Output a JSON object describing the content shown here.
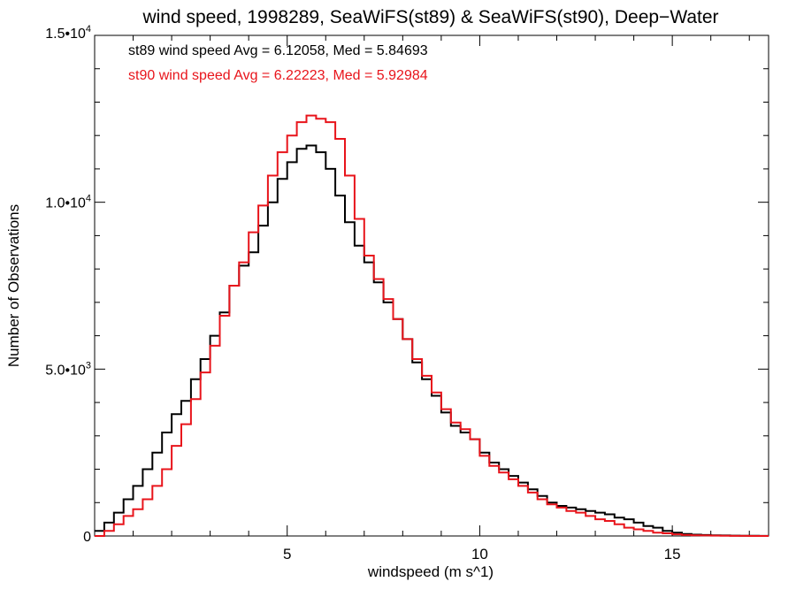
{
  "chart_data": {
    "type": "line",
    "title": "wind speed, 1998289, SeaWiFS(st89) & SeaWiFS(st90), Deep−Water",
    "xlabel": "windspeed (m s^1)",
    "ylabel": "Number of Observations",
    "xlim": [
      0,
      17.5
    ],
    "ylim": [
      0,
      15000
    ],
    "x_ticks": [
      {
        "value": 5,
        "label": "5"
      },
      {
        "value": 10,
        "label": "10"
      },
      {
        "value": 15,
        "label": "15"
      }
    ],
    "y_ticks": [
      {
        "value": 0,
        "mantissa": "0",
        "exp": ""
      },
      {
        "value": 5000,
        "mantissa": "5.0•10",
        "exp": "3"
      },
      {
        "value": 10000,
        "mantissa": "1.0•10",
        "exp": "4"
      },
      {
        "value": 15000,
        "mantissa": "1.5•10",
        "exp": "4"
      }
    ],
    "grid": false,
    "annotations": [
      {
        "text": "st89 wind speed Avg = 6.12058, Med = 5.84693",
        "color": "#000000"
      },
      {
        "text": "st90 wind speed Avg = 6.22223, Med = 5.92984",
        "color": "#e8141b"
      }
    ],
    "series": [
      {
        "color": "#000000",
        "x": [
          0,
          0.25,
          0.5,
          0.75,
          1,
          1.25,
          1.5,
          1.75,
          2,
          2.25,
          2.5,
          2.75,
          3,
          3.25,
          3.5,
          3.75,
          4,
          4.25,
          4.5,
          4.75,
          5,
          5.25,
          5.5,
          5.75,
          6,
          6.25,
          6.5,
          6.75,
          7,
          7.25,
          7.5,
          7.75,
          8,
          8.25,
          8.5,
          8.75,
          9,
          9.25,
          9.5,
          9.75,
          10,
          10.25,
          10.5,
          10.75,
          11,
          11.25,
          11.5,
          11.75,
          12,
          12.25,
          12.5,
          12.75,
          13,
          13.25,
          13.5,
          13.75,
          14,
          14.25,
          14.5,
          14.75,
          15,
          15.25,
          15.5,
          15.75,
          16,
          16.25,
          16.5,
          16.75,
          17,
          17.25,
          17.5
        ],
        "y": [
          150,
          400,
          700,
          1100,
          1500,
          2000,
          2500,
          3100,
          3650,
          4050,
          4700,
          5300,
          6000,
          6700,
          7500,
          8100,
          8500,
          9300,
          10000,
          10700,
          11200,
          11600,
          11700,
          11500,
          11000,
          10200,
          9400,
          8700,
          8200,
          7600,
          7000,
          6500,
          5900,
          5200,
          4700,
          4200,
          3700,
          3300,
          3100,
          2900,
          2500,
          2200,
          2000,
          1800,
          1600,
          1400,
          1200,
          1000,
          900,
          850,
          800,
          750,
          700,
          650,
          550,
          500,
          400,
          300,
          250,
          150,
          100,
          60,
          40,
          30,
          20,
          15,
          10,
          8,
          5,
          3,
          2
        ]
      },
      {
        "color": "#e8141b",
        "x": [
          0,
          0.25,
          0.5,
          0.75,
          1,
          1.25,
          1.5,
          1.75,
          2,
          2.25,
          2.5,
          2.75,
          3,
          3.25,
          3.5,
          3.75,
          4,
          4.25,
          4.5,
          4.75,
          5,
          5.25,
          5.5,
          5.75,
          6,
          6.25,
          6.5,
          6.75,
          7,
          7.25,
          7.5,
          7.75,
          8,
          8.25,
          8.5,
          8.75,
          9,
          9.25,
          9.5,
          9.75,
          10,
          10.25,
          10.5,
          10.75,
          11,
          11.25,
          11.5,
          11.75,
          12,
          12.25,
          12.5,
          12.75,
          13,
          13.25,
          13.5,
          13.75,
          14,
          14.25,
          14.5,
          14.75,
          15,
          15.25,
          15.5,
          15.75,
          16,
          16.25,
          16.5,
          16.75,
          17,
          17.25,
          17.5
        ],
        "y": [
          0,
          150,
          350,
          600,
          800,
          1100,
          1500,
          2000,
          2700,
          3350,
          4100,
          4900,
          5700,
          6600,
          7500,
          8200,
          9100,
          9900,
          10800,
          11500,
          12000,
          12400,
          12600,
          12500,
          12400,
          11900,
          10800,
          9500,
          8400,
          7700,
          7100,
          6500,
          5900,
          5300,
          4800,
          4300,
          3800,
          3400,
          3200,
          2900,
          2400,
          2100,
          1900,
          1700,
          1500,
          1300,
          1100,
          950,
          850,
          750,
          700,
          600,
          500,
          450,
          350,
          250,
          200,
          150,
          100,
          80,
          50,
          30,
          20,
          15,
          10,
          5,
          3,
          2,
          1,
          0,
          0
        ]
      }
    ]
  }
}
